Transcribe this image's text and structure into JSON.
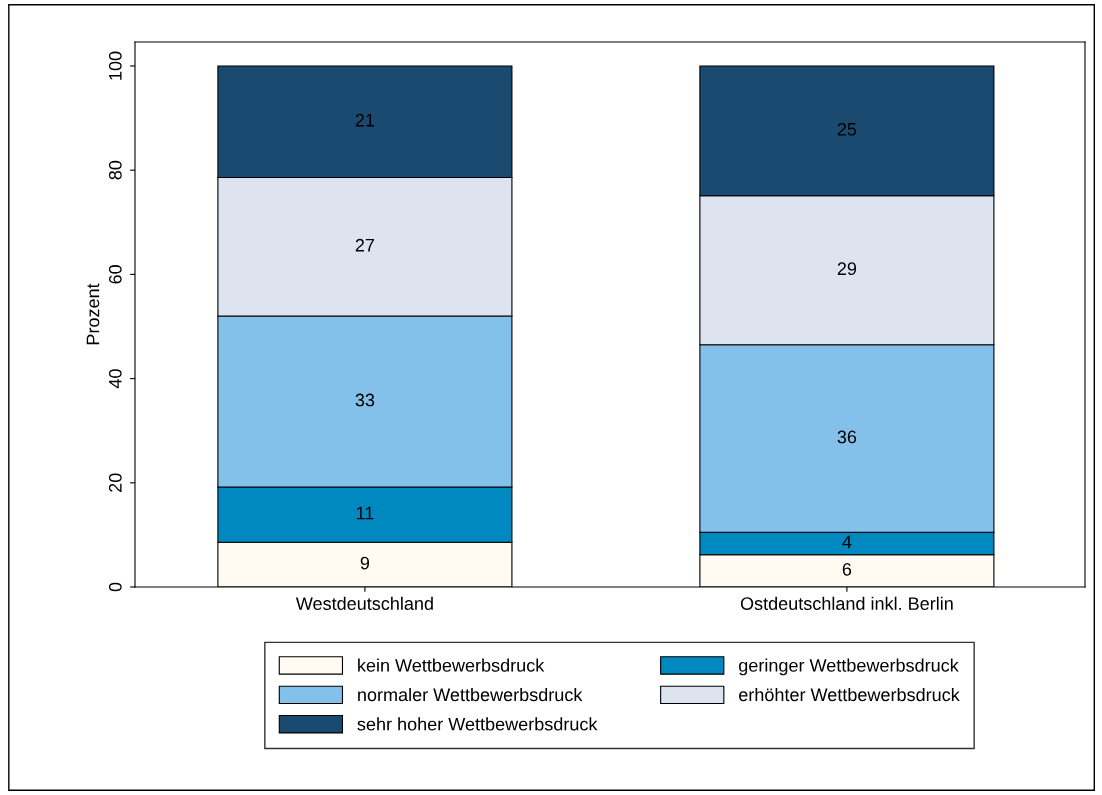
{
  "chart_data": {
    "type": "bar",
    "stacked": true,
    "ylabel": "Prozent",
    "categories": [
      "Westdeutschland",
      "Ostdeutschland inkl. Berlin"
    ],
    "series": [
      {
        "name": "kein Wettbewerbsdruck",
        "color": "#fffaf2",
        "values": [
          8.6,
          6.2
        ],
        "value_labels": [
          "9",
          "6"
        ]
      },
      {
        "name": "geringer Wettbewerbsdruck",
        "color": "#0089c0",
        "values": [
          10.6,
          4.3
        ],
        "value_labels": [
          "11",
          "4"
        ]
      },
      {
        "name": "normaler Wettbewerbsdruck",
        "color": "#84c1ea",
        "values": [
          32.8,
          36.0
        ],
        "value_labels": [
          "33",
          "36"
        ]
      },
      {
        "name": "erhöhter Wettbewerbsdruck",
        "color": "#dde4ef",
        "values": [
          26.6,
          28.6
        ],
        "value_labels": [
          "27",
          "29"
        ]
      },
      {
        "name": "sehr hoher Wettbewerbsdruck",
        "color": "#1b4a70",
        "values": [
          21.4,
          24.9
        ],
        "value_labels": [
          "21",
          "25"
        ]
      }
    ],
    "ylim": [
      0,
      104.6
    ],
    "yticks": [
      0,
      20,
      40,
      60,
      80,
      100
    ],
    "grid": false,
    "legend": "bottom"
  }
}
